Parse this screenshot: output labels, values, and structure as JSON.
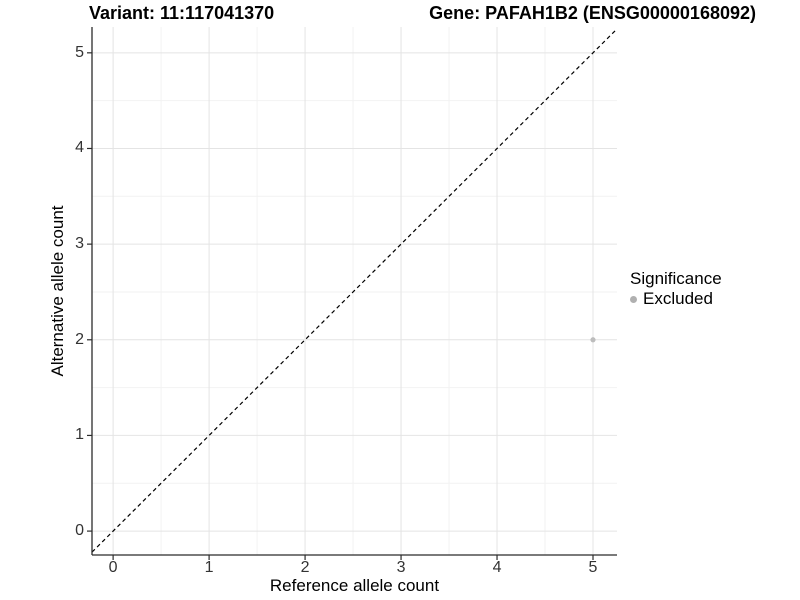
{
  "chart_data": {
    "type": "scatter",
    "title_left": "Variant: 11:117041370",
    "title_right": "Gene: PAFAH1B2 (ENSG00000168092)",
    "xlabel": "Reference allele count",
    "ylabel": "Alternative allele count",
    "xlim": [
      -0.22,
      5.25
    ],
    "ylim": [
      -0.25,
      5.27
    ],
    "x_ticks": [
      0,
      1,
      2,
      3,
      4,
      5
    ],
    "y_ticks": [
      0,
      1,
      2,
      3,
      4,
      5
    ],
    "x_minor_ticks": [
      0.5,
      1.5,
      2.5,
      3.5,
      4.5
    ],
    "y_minor_ticks": [
      0.5,
      1.5,
      2.5,
      3.5,
      4.5
    ],
    "grid": "major+minor",
    "identity_line": {
      "slope": 1,
      "intercept": 0,
      "style": "dashed",
      "color": "#000000"
    },
    "series": [
      {
        "name": "Excluded",
        "color": "#bdbdbd",
        "points": [
          {
            "x": 5,
            "y": 2
          }
        ]
      }
    ],
    "legend": {
      "title": "Significance",
      "position": "right",
      "items": [
        {
          "label": "Excluded",
          "color": "#b0b0b0",
          "marker": "circle"
        }
      ]
    }
  },
  "colors": {
    "background": "#ffffff",
    "grid_major": "#e4e4e4",
    "grid_minor": "#f2f2f2",
    "axis_line": "#2b2b2b",
    "tick_mark": "#2b2b2b",
    "tick_label": "#333333"
  }
}
